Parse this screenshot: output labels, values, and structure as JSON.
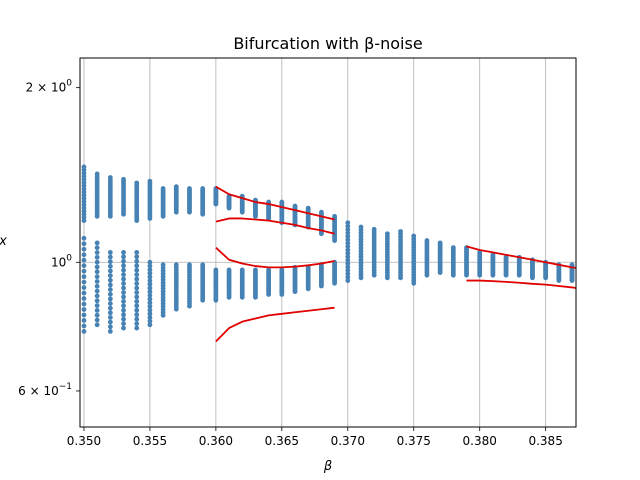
{
  "chart_data": {
    "type": "scatter",
    "title": "Bifurcation with β-noise",
    "xlabel": "β",
    "ylabel": "x",
    "yscale": "log",
    "xlim": [
      0.3497,
      0.3873
    ],
    "ylim": [
      0.52,
      2.25
    ],
    "grid": "vertical",
    "x_ticks": [
      {
        "value": 0.35,
        "label": "0.350"
      },
      {
        "value": 0.355,
        "label": "0.355"
      },
      {
        "value": 0.36,
        "label": "0.360"
      },
      {
        "value": 0.365,
        "label": "0.365"
      },
      {
        "value": 0.37,
        "label": "0.370"
      },
      {
        "value": 0.375,
        "label": "0.375"
      },
      {
        "value": 0.38,
        "label": "0.380"
      },
      {
        "value": 0.385,
        "label": "0.385"
      }
    ],
    "y_ticks": [
      {
        "value": 2.0,
        "label_base": "2 × 10",
        "label_exp": "0"
      },
      {
        "value": 1.0,
        "label_base": "10",
        "label_exp": "0"
      },
      {
        "value": 0.6,
        "label_base": "6 × 10",
        "label_exp": "−1"
      }
    ],
    "scatter_color": "#4682b4",
    "curve_color": "#e00000",
    "scatter_columns": [
      {
        "x": 0.35,
        "bands": [
          [
            1.18,
            1.46
          ],
          [
            0.76,
            1.1
          ]
        ]
      },
      {
        "x": 0.351,
        "bands": [
          [
            1.2,
            1.42
          ],
          [
            0.78,
            1.08
          ]
        ]
      },
      {
        "x": 0.352,
        "bands": [
          [
            1.2,
            1.4
          ],
          [
            0.76,
            1.04
          ]
        ]
      },
      {
        "x": 0.353,
        "bands": [
          [
            1.21,
            1.39
          ],
          [
            0.77,
            1.04
          ]
        ]
      },
      {
        "x": 0.354,
        "bands": [
          [
            1.18,
            1.37
          ],
          [
            0.77,
            1.04
          ]
        ]
      },
      {
        "x": 0.355,
        "bands": [
          [
            1.19,
            1.38
          ],
          [
            0.78,
            1.0
          ]
        ]
      },
      {
        "x": 0.356,
        "bands": [
          [
            1.2,
            1.34
          ],
          [
            0.81,
            0.99
          ]
        ]
      },
      {
        "x": 0.357,
        "bands": [
          [
            1.22,
            1.35
          ],
          [
            0.83,
            0.99
          ]
        ]
      },
      {
        "x": 0.358,
        "bands": [
          [
            1.22,
            1.34
          ],
          [
            0.84,
            0.99
          ]
        ]
      },
      {
        "x": 0.359,
        "bands": [
          [
            1.21,
            1.34
          ],
          [
            0.86,
            0.99
          ]
        ]
      },
      {
        "x": 0.36,
        "bands": [
          [
            1.26,
            1.34
          ],
          [
            0.86,
            0.97
          ]
        ]
      },
      {
        "x": 0.361,
        "bands": [
          [
            1.24,
            1.3
          ],
          [
            0.87,
            0.97
          ]
        ]
      },
      {
        "x": 0.362,
        "bands": [
          [
            1.22,
            1.3
          ],
          [
            0.87,
            0.97
          ]
        ]
      },
      {
        "x": 0.363,
        "bands": [
          [
            1.2,
            1.28
          ],
          [
            0.87,
            0.97
          ]
        ]
      },
      {
        "x": 0.364,
        "bands": [
          [
            1.19,
            1.27
          ],
          [
            0.88,
            0.97
          ]
        ]
      },
      {
        "x": 0.365,
        "bands": [
          [
            1.17,
            1.27
          ],
          [
            0.88,
            0.97
          ]
        ]
      },
      {
        "x": 0.366,
        "bands": [
          [
            1.16,
            1.25
          ],
          [
            0.89,
            0.98
          ]
        ]
      },
      {
        "x": 0.367,
        "bands": [
          [
            1.15,
            1.24
          ],
          [
            0.9,
            0.98
          ]
        ]
      },
      {
        "x": 0.368,
        "bands": [
          [
            1.12,
            1.22
          ],
          [
            0.91,
            0.99
          ]
        ]
      },
      {
        "x": 0.369,
        "bands": [
          [
            1.09,
            1.2
          ],
          [
            0.92,
            1.0
          ]
        ]
      },
      {
        "x": 0.37,
        "bands": [
          [
            0.93,
            1.17
          ]
        ]
      },
      {
        "x": 0.371,
        "bands": [
          [
            0.94,
            1.15
          ]
        ]
      },
      {
        "x": 0.372,
        "bands": [
          [
            0.95,
            1.14
          ]
        ]
      },
      {
        "x": 0.373,
        "bands": [
          [
            0.94,
            1.12
          ]
        ]
      },
      {
        "x": 0.374,
        "bands": [
          [
            0.94,
            1.13
          ]
        ]
      },
      {
        "x": 0.375,
        "bands": [
          [
            0.92,
            1.11
          ]
        ]
      },
      {
        "x": 0.376,
        "bands": [
          [
            0.95,
            1.09
          ]
        ]
      },
      {
        "x": 0.377,
        "bands": [
          [
            0.96,
            1.08
          ]
        ]
      },
      {
        "x": 0.378,
        "bands": [
          [
            0.95,
            1.06
          ]
        ]
      },
      {
        "x": 0.379,
        "bands": [
          [
            0.95,
            1.06
          ]
        ]
      },
      {
        "x": 0.38,
        "bands": [
          [
            0.95,
            1.04
          ]
        ]
      },
      {
        "x": 0.381,
        "bands": [
          [
            0.95,
            1.03
          ]
        ]
      },
      {
        "x": 0.382,
        "bands": [
          [
            0.95,
            1.02
          ]
        ]
      },
      {
        "x": 0.383,
        "bands": [
          [
            0.95,
            1.02
          ]
        ]
      },
      {
        "x": 0.384,
        "bands": [
          [
            0.94,
            1.01
          ]
        ]
      },
      {
        "x": 0.385,
        "bands": [
          [
            0.94,
            1.0
          ]
        ]
      },
      {
        "x": 0.386,
        "bands": [
          [
            0.93,
            0.99
          ]
        ]
      },
      {
        "x": 0.387,
        "bands": [
          [
            0.93,
            0.99
          ]
        ]
      }
    ],
    "curves": [
      {
        "x": [
          0.36,
          0.361,
          0.362,
          0.363,
          0.364,
          0.365,
          0.366,
          0.367,
          0.368,
          0.369
        ],
        "y": [
          1.35,
          1.31,
          1.29,
          1.27,
          1.26,
          1.245,
          1.23,
          1.215,
          1.2,
          1.185
        ]
      },
      {
        "x": [
          0.36,
          0.361,
          0.362,
          0.363,
          0.364,
          0.365,
          0.366,
          0.367,
          0.368,
          0.369
        ],
        "y": [
          1.175,
          1.19,
          1.19,
          1.185,
          1.18,
          1.17,
          1.16,
          1.145,
          1.135,
          1.12
        ]
      },
      {
        "x": [
          0.36,
          0.361,
          0.362,
          0.363,
          0.364,
          0.365,
          0.366,
          0.367,
          0.368,
          0.369
        ],
        "y": [
          1.06,
          1.01,
          0.995,
          0.985,
          0.98,
          0.98,
          0.983,
          0.988,
          0.995,
          1.005
        ]
      },
      {
        "x": [
          0.36,
          0.361,
          0.362,
          0.363,
          0.364,
          0.365,
          0.366,
          0.367,
          0.368,
          0.369
        ],
        "y": [
          0.73,
          0.77,
          0.79,
          0.8,
          0.81,
          0.815,
          0.82,
          0.825,
          0.83,
          0.835
        ]
      },
      {
        "x": [
          0.379,
          0.38,
          0.381,
          0.382,
          0.383,
          0.384,
          0.385,
          0.386,
          0.387,
          0.3873
        ],
        "y": [
          1.065,
          1.05,
          1.04,
          1.03,
          1.02,
          1.01,
          1.0,
          0.99,
          0.98,
          0.978
        ]
      },
      {
        "x": [
          0.379,
          0.38,
          0.381,
          0.382,
          0.383,
          0.384,
          0.385,
          0.386,
          0.387,
          0.3873
        ],
        "y": [
          0.93,
          0.93,
          0.928,
          0.925,
          0.922,
          0.918,
          0.915,
          0.91,
          0.905,
          0.903
        ]
      }
    ]
  }
}
